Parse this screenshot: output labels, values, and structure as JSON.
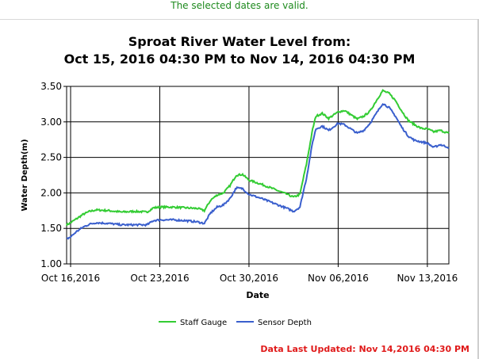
{
  "status_message": "The selected dates are valid.",
  "footer": {
    "last_updated": "Data Last Updated: Nov 14,2016 04:30 PM"
  },
  "chart_data": {
    "type": "line",
    "title_line1": "Sproat River Water Level from:",
    "title_line2": "Oct 15, 2016 04:30 PM to Nov 14, 2016 04:30 PM",
    "xlabel": "Date",
    "ylabel": "Water Depth(m)",
    "ylim": [
      1.0,
      3.5
    ],
    "yticks": [
      "1.00",
      "1.50",
      "2.00",
      "2.50",
      "3.00",
      "3.50"
    ],
    "xlim": [
      "2016-10-15T16:30",
      "2016-11-14T16:30"
    ],
    "xticks": [
      {
        "date": "2016-10-16",
        "label": "Oct 16,2016"
      },
      {
        "date": "2016-10-23",
        "label": "Oct 23,2016"
      },
      {
        "date": "2016-10-30",
        "label": "Oct 30,2016"
      },
      {
        "date": "2016-11-06",
        "label": "Nov 06,2016"
      },
      {
        "date": "2016-11-13",
        "label": "Nov 13,2016"
      }
    ],
    "grid": true,
    "legend": "bottom-center",
    "series": [
      {
        "name": "Staff Gauge",
        "color": "#33cc33",
        "points": [
          [
            "2016-10-15T16:30",
            1.55
          ],
          [
            "2016-10-16T00:00",
            1.58
          ],
          [
            "2016-10-16T12:00",
            1.64
          ],
          [
            "2016-10-17T00:00",
            1.7
          ],
          [
            "2016-10-17T12:00",
            1.74
          ],
          [
            "2016-10-18T00:00",
            1.76
          ],
          [
            "2016-10-19T00:00",
            1.75
          ],
          [
            "2016-10-20T00:00",
            1.73
          ],
          [
            "2016-10-21T00:00",
            1.74
          ],
          [
            "2016-10-22T00:00",
            1.73
          ],
          [
            "2016-10-22T12:00",
            1.79
          ],
          [
            "2016-10-23T00:00",
            1.8
          ],
          [
            "2016-10-24T00:00",
            1.8
          ],
          [
            "2016-10-25T00:00",
            1.79
          ],
          [
            "2016-10-26T00:00",
            1.78
          ],
          [
            "2016-10-26T12:00",
            1.75
          ],
          [
            "2016-10-27T00:00",
            1.9
          ],
          [
            "2016-10-27T12:00",
            1.97
          ],
          [
            "2016-10-28T00:00",
            2.0
          ],
          [
            "2016-10-28T12:00",
            2.1
          ],
          [
            "2016-10-29T00:00",
            2.25
          ],
          [
            "2016-10-29T12:00",
            2.26
          ],
          [
            "2016-10-30T00:00",
            2.18
          ],
          [
            "2016-10-31T00:00",
            2.12
          ],
          [
            "2016-11-01T00:00",
            2.05
          ],
          [
            "2016-11-02T00:00",
            1.98
          ],
          [
            "2016-11-02T12:00",
            1.94
          ],
          [
            "2016-11-03T00:00",
            1.98
          ],
          [
            "2016-11-03T12:00",
            2.4
          ],
          [
            "2016-11-04T00:00",
            2.9
          ],
          [
            "2016-11-04T06:00",
            3.08
          ],
          [
            "2016-11-04T18:00",
            3.12
          ],
          [
            "2016-11-05T06:00",
            3.05
          ],
          [
            "2016-11-06T00:00",
            3.14
          ],
          [
            "2016-11-06T12:00",
            3.16
          ],
          [
            "2016-11-07T00:00",
            3.1
          ],
          [
            "2016-11-07T12:00",
            3.04
          ],
          [
            "2016-11-08T00:00",
            3.08
          ],
          [
            "2016-11-08T12:00",
            3.15
          ],
          [
            "2016-11-09T00:00",
            3.3
          ],
          [
            "2016-11-09T12:00",
            3.44
          ],
          [
            "2016-11-10T00:00",
            3.4
          ],
          [
            "2016-11-10T12:00",
            3.3
          ],
          [
            "2016-11-11T00:00",
            3.15
          ],
          [
            "2016-11-11T12:00",
            3.02
          ],
          [
            "2016-11-12T00:00",
            2.96
          ],
          [
            "2016-11-12T12:00",
            2.91
          ],
          [
            "2016-11-13T00:00",
            2.9
          ],
          [
            "2016-11-13T12:00",
            2.86
          ],
          [
            "2016-11-14T00:00",
            2.88
          ],
          [
            "2016-11-14T16:30",
            2.84
          ]
        ]
      },
      {
        "name": "Sensor Depth",
        "color": "#3a5fcd",
        "points": [
          [
            "2016-10-15T16:30",
            1.35
          ],
          [
            "2016-10-16T00:00",
            1.38
          ],
          [
            "2016-10-16T12:00",
            1.46
          ],
          [
            "2016-10-17T00:00",
            1.52
          ],
          [
            "2016-10-17T12:00",
            1.56
          ],
          [
            "2016-10-18T00:00",
            1.58
          ],
          [
            "2016-10-19T00:00",
            1.57
          ],
          [
            "2016-10-20T00:00",
            1.55
          ],
          [
            "2016-10-21T00:00",
            1.55
          ],
          [
            "2016-10-22T00:00",
            1.55
          ],
          [
            "2016-10-22T12:00",
            1.61
          ],
          [
            "2016-10-23T00:00",
            1.62
          ],
          [
            "2016-10-24T00:00",
            1.62
          ],
          [
            "2016-10-25T00:00",
            1.61
          ],
          [
            "2016-10-26T00:00",
            1.59
          ],
          [
            "2016-10-26T12:00",
            1.57
          ],
          [
            "2016-10-27T00:00",
            1.72
          ],
          [
            "2016-10-27T12:00",
            1.8
          ],
          [
            "2016-10-28T00:00",
            1.83
          ],
          [
            "2016-10-28T12:00",
            1.92
          ],
          [
            "2016-10-29T00:00",
            2.07
          ],
          [
            "2016-10-29T12:00",
            2.06
          ],
          [
            "2016-10-30T00:00",
            1.98
          ],
          [
            "2016-10-31T00:00",
            1.92
          ],
          [
            "2016-11-01T00:00",
            1.85
          ],
          [
            "2016-11-02T00:00",
            1.78
          ],
          [
            "2016-11-02T12:00",
            1.74
          ],
          [
            "2016-11-03T00:00",
            1.8
          ],
          [
            "2016-11-03T12:00",
            2.2
          ],
          [
            "2016-11-04T00:00",
            2.72
          ],
          [
            "2016-11-04T06:00",
            2.9
          ],
          [
            "2016-11-04T18:00",
            2.94
          ],
          [
            "2016-11-05T06:00",
            2.88
          ],
          [
            "2016-11-06T00:00",
            2.98
          ],
          [
            "2016-11-06T12:00",
            2.96
          ],
          [
            "2016-11-07T00:00",
            2.9
          ],
          [
            "2016-11-07T12:00",
            2.84
          ],
          [
            "2016-11-08T00:00",
            2.88
          ],
          [
            "2016-11-08T12:00",
            2.98
          ],
          [
            "2016-11-09T00:00",
            3.12
          ],
          [
            "2016-11-09T12:00",
            3.26
          ],
          [
            "2016-11-10T00:00",
            3.2
          ],
          [
            "2016-11-10T12:00",
            3.08
          ],
          [
            "2016-11-11T00:00",
            2.92
          ],
          [
            "2016-11-11T12:00",
            2.8
          ],
          [
            "2016-11-12T00:00",
            2.74
          ],
          [
            "2016-11-12T12:00",
            2.72
          ],
          [
            "2016-11-13T00:00",
            2.7
          ],
          [
            "2016-11-13T12:00",
            2.64
          ],
          [
            "2016-11-14T00:00",
            2.68
          ],
          [
            "2016-11-14T16:30",
            2.64
          ]
        ]
      }
    ]
  }
}
